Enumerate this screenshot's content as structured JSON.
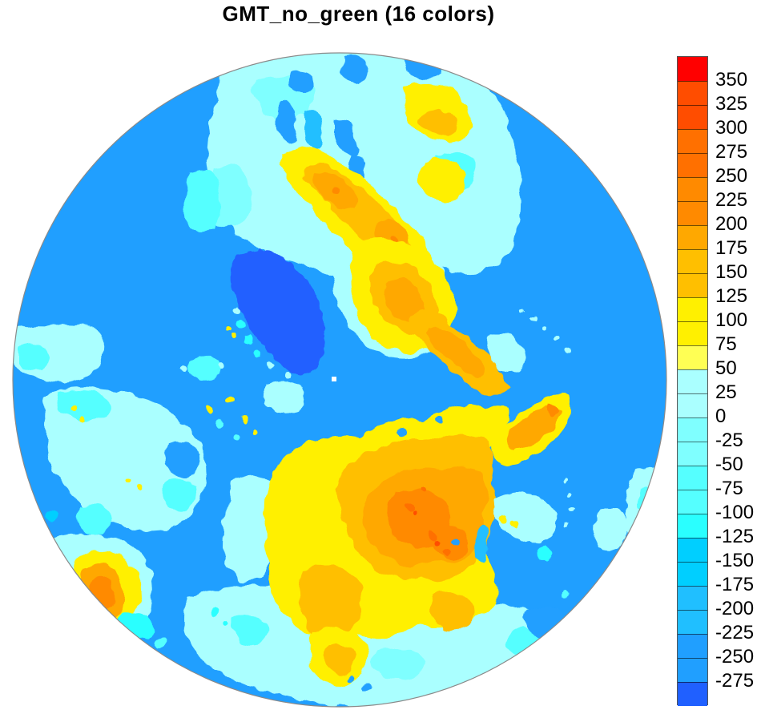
{
  "title": "GMT_no_green (16 colors)",
  "palette": {
    "name": "GMT_no_green",
    "n_colors": 16,
    "colors": [
      "#2060FF",
      "#209FFF",
      "#20BFFF",
      "#00CFFF",
      "#2AFFFF",
      "#55FFFF",
      "#7FFFFF",
      "#AAFFFF",
      "#FFFF54",
      "#FFF000",
      "#FFBF00",
      "#FFA800",
      "#FF8A00",
      "#FF7000",
      "#FF4D00",
      "#FF0000"
    ]
  },
  "map": {
    "projection": "north polar stereographic",
    "ocean_color": "#209FFF",
    "ice_sheet_color": "#2060FF",
    "outline_color": "#8a8a8a",
    "pole_dot_color": "#FFFFFF"
  },
  "chart_data": {
    "type": "heatmap",
    "title": "GMT_no_green (16 colors)",
    "colormap_name": "GMT_no_green",
    "n_colors": 16,
    "legend_position": "right",
    "colorbar": {
      "tick_labels": [
        350,
        325,
        300,
        275,
        250,
        225,
        200,
        175,
        150,
        125,
        100,
        75,
        50,
        25,
        0,
        -25,
        -50,
        -75,
        -100,
        -125,
        -150,
        -175,
        -200,
        -225,
        -250,
        -275
      ],
      "tick_step": 25,
      "segment_colors_top_to_bottom": [
        "#FF0000",
        "#FF4D00",
        "#FF4D00",
        "#FF7000",
        "#FF7000",
        "#FF8A00",
        "#FF8A00",
        "#FFA800",
        "#FFBF00",
        "#FFBF00",
        "#FFF000",
        "#FFF000",
        "#FFFF54",
        "#AAFFFF",
        "#AAFFFF",
        "#7FFFFF",
        "#7FFFFF",
        "#55FFFF",
        "#55FFFF",
        "#2AFFFF",
        "#00CFFF",
        "#00CFFF",
        "#20BFFF",
        "#20BFFF",
        "#209FFF",
        "#209FFF",
        "#2060FF"
      ]
    }
  }
}
